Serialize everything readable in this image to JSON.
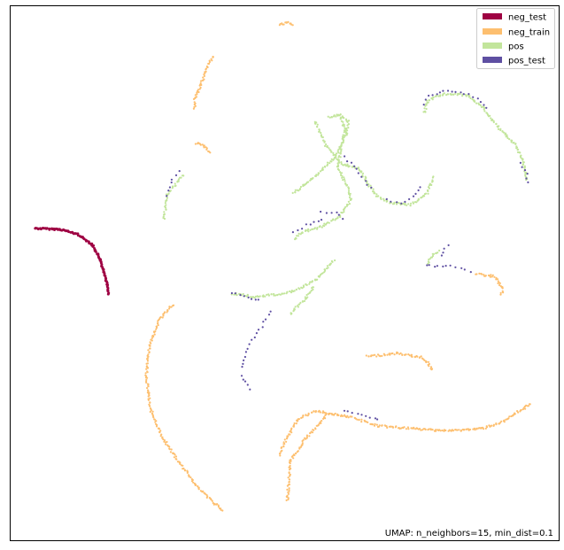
{
  "chart_data": {
    "type": "scatter",
    "title": "",
    "xlabel": "",
    "ylabel": "",
    "xlim": [
      0,
      100
    ],
    "ylim": [
      0,
      100
    ],
    "grid": false,
    "ticks": false,
    "legend_position": "top-right",
    "annotation": "UMAP: n_neighbors=15, min_dist=0.1",
    "series": [
      {
        "name": "neg_test",
        "color": "#9e0142",
        "curves": [
          [
            [
              4.5,
              58.4
            ],
            [
              9.2,
              58.2
            ],
            [
              12.2,
              57.3
            ],
            [
              14.8,
              55.5
            ],
            [
              16.2,
              52.9
            ],
            [
              17.2,
              49.9
            ],
            [
              17.7,
              47.3
            ],
            [
              17.8,
              45.8
            ]
          ]
        ]
      },
      {
        "name": "neg_train",
        "color": "#fdbf6f",
        "curves": [
          [
            [
              49,
              96.6
            ],
            [
              50.5,
              96.9
            ],
            [
              51.8,
              96.5
            ]
          ],
          [
            [
              37,
              90.7
            ],
            [
              35.8,
              88.4
            ],
            [
              34.6,
              85
            ],
            [
              33.6,
              82.7
            ],
            [
              33.6,
              80.5
            ]
          ],
          [
            [
              33.8,
              74.4
            ],
            [
              35.2,
              73.9
            ],
            [
              36.5,
              72.4
            ]
          ],
          [
            [
              29.6,
              44.2
            ],
            [
              27,
              41
            ],
            [
              25.2,
              35.8
            ],
            [
              24.8,
              30.7
            ],
            [
              25.4,
              24.8
            ],
            [
              27.8,
              19
            ],
            [
              30.8,
              14.5
            ],
            [
              34.5,
              9.5
            ],
            [
              38.8,
              5.4
            ]
          ],
          [
            [
              65,
              34.4
            ],
            [
              70.5,
              35
            ],
            [
              75.2,
              34.2
            ],
            [
              77.2,
              31.8
            ]
          ],
          [
            [
              85,
              49.8
            ],
            [
              88.4,
              49.4
            ],
            [
              89.8,
              47
            ],
            [
              89.5,
              45.8
            ]
          ],
          [
            [
              50.5,
              7.3
            ],
            [
              51,
              14.7
            ],
            [
              53.8,
              19
            ],
            [
              58,
              23.8
            ],
            [
              62,
              23.1
            ],
            [
              67,
              21.4
            ],
            [
              74.5,
              20.8
            ],
            [
              80.2,
              20.5
            ],
            [
              86,
              20.9
            ],
            [
              90,
              22.2
            ],
            [
              95,
              25.7
            ]
          ],
          [
            [
              49,
              16
            ],
            [
              50.5,
              19.4
            ],
            [
              52.5,
              22.7
            ],
            [
              55.8,
              24.3
            ],
            [
              58.2,
              23.8
            ]
          ]
        ]
      },
      {
        "name": "pos",
        "color": "#c2e59b",
        "curves": [
          [
            [
              28,
              60.1
            ],
            [
              28.5,
              64.5
            ],
            [
              31.5,
              68.6
            ]
          ],
          [
            [
              55.5,
              78.5
            ],
            [
              57.5,
              74
            ],
            [
              60.5,
              70.4
            ],
            [
              63.5,
              69.7
            ],
            [
              65,
              67.2
            ],
            [
              66.6,
              64.6
            ],
            [
              69,
              63.2
            ],
            [
              73,
              62.8
            ],
            [
              76,
              65
            ],
            [
              77.2,
              68.2
            ]
          ],
          [
            [
              60.2,
              79.4
            ],
            [
              61,
              76.7
            ],
            [
              60.3,
              73.4
            ],
            [
              59.7,
              69.9
            ],
            [
              61.2,
              66.8
            ],
            [
              62.2,
              63.9
            ],
            [
              60,
              60.6
            ],
            [
              56.8,
              58.8
            ],
            [
              53,
              57.6
            ],
            [
              51.8,
              56.1
            ]
          ],
          [
            [
              58,
              79.3
            ],
            [
              60.2,
              79.6
            ],
            [
              61.6,
              78.4
            ],
            [
              61.2,
              75.8
            ],
            [
              59,
              71.5
            ],
            [
              55.5,
              68.1
            ],
            [
              51.4,
              64.8
            ]
          ],
          [
            [
              75.5,
              80
            ],
            [
              76.2,
              82.5
            ],
            [
              79.2,
              83.6
            ],
            [
              83.5,
              83.3
            ],
            [
              86.4,
              80.8
            ],
            [
              89,
              77.2
            ],
            [
              92,
              74.2
            ],
            [
              93.5,
              71.2
            ],
            [
              94.2,
              67.2
            ]
          ],
          [
            [
              40.5,
              46.2
            ],
            [
              44.5,
              45.6
            ],
            [
              49.5,
              46.1
            ],
            [
              53,
              47.2
            ],
            [
              56,
              49
            ],
            [
              59.2,
              52.6
            ]
          ],
          [
            [
              51,
              42.4
            ],
            [
              53.5,
              44.9
            ],
            [
              55.5,
              47.6
            ]
          ],
          [
            [
              76,
              51.9
            ],
            [
              77.2,
              53.4
            ],
            [
              78.2,
              54.3
            ]
          ]
        ]
      },
      {
        "name": "pos_test",
        "color": "#5e4fa2",
        "curves": [
          [
            [
              28.4,
              64.6
            ],
            [
              29.5,
              67.7
            ],
            [
              31.2,
              70
            ]
          ],
          [
            [
              75.2,
              81.5
            ],
            [
              76.3,
              83.2
            ],
            [
              79,
              84.1
            ],
            [
              82,
              84
            ],
            [
              85.4,
              82.8
            ],
            [
              87.4,
              80.3
            ]
          ],
          [
            [
              93,
              70.5
            ],
            [
              94.2,
              68.6
            ],
            [
              94.4,
              66.4
            ]
          ],
          [
            [
              61.1,
              71.7
            ],
            [
              63.6,
              68.8
            ],
            [
              66.2,
              65.2
            ]
          ],
          [
            [
              68.6,
              63.7
            ],
            [
              71.2,
              63.1
            ],
            [
              73.4,
              64.4
            ],
            [
              75.4,
              66.5
            ]
          ],
          [
            [
              51.5,
              57.6
            ],
            [
              53.8,
              59
            ],
            [
              57.6,
              60.2
            ]
          ],
          [
            [
              56.6,
              61.4
            ],
            [
              59.4,
              61.3
            ],
            [
              61.4,
              59.8
            ]
          ],
          [
            [
              40.5,
              46.4
            ],
            [
              43.2,
              45.3
            ],
            [
              46,
              44.8
            ]
          ],
          [
            [
              47.5,
              42.9
            ],
            [
              45.4,
              39.4
            ],
            [
              43.6,
              36.7
            ],
            [
              42.8,
              34.5
            ],
            [
              42.3,
              31.6
            ]
          ],
          [
            [
              42.2,
              30.9
            ],
            [
              43.2,
              29
            ],
            [
              44.4,
              27.8
            ]
          ],
          [
            [
              60.8,
              24.3
            ],
            [
              64.2,
              23.6
            ],
            [
              67.8,
              22.3
            ]
          ],
          [
            [
              75.8,
              51.4
            ],
            [
              78,
              51.3
            ],
            [
              80.4,
              51.4
            ],
            [
              83,
              50.8
            ],
            [
              84.6,
              49.7
            ]
          ],
          [
            [
              78.6,
              53.4
            ],
            [
              79.2,
              54.6
            ],
            [
              80.4,
              55.5
            ]
          ]
        ]
      }
    ]
  }
}
